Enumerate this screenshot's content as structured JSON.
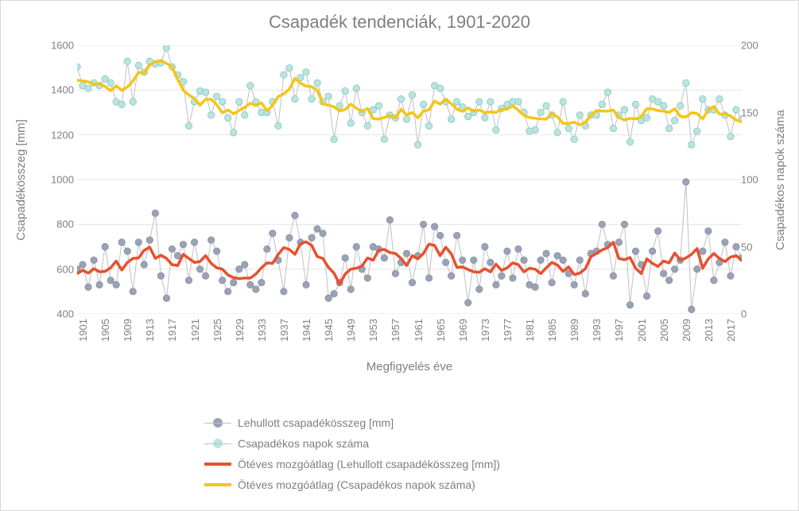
{
  "title": {
    "text": "Csapadék tendenciák, 1901-2020",
    "fontsize": 22
  },
  "axes": {
    "x_label": "Megfigyelés éve",
    "y_label_left": "Csapadékösszeg [mm]",
    "y_label_right": "Csapadékos napok száma",
    "label_fontsize": 15,
    "tick_fontsize": 13,
    "x_start": 1901,
    "x_end": 2020,
    "y1_min": 400,
    "y1_max": 1600,
    "y2_min": 0,
    "y2_max": 200,
    "y1_ticks": [
      400,
      600,
      800,
      1000,
      1200,
      1400,
      1600
    ],
    "y2_ticks": [
      0,
      50,
      100,
      150,
      200
    ],
    "x_ticks": [
      1901,
      1905,
      1909,
      1913,
      1917,
      1921,
      1925,
      1929,
      1933,
      1937,
      1941,
      1945,
      1949,
      1953,
      1957,
      1961,
      1965,
      1969,
      1973,
      1977,
      1981,
      1985,
      1989,
      1993,
      1997,
      2001,
      2005,
      2009,
      2013,
      2017
    ],
    "grid_color": "#e6e6e6",
    "background": "#ffffff",
    "text_color": "#7f7f7f"
  },
  "series": {
    "precip_mm": {
      "type": "scatter-line",
      "axis": "y1",
      "marker_color": "#9aa3b5",
      "marker_stroke": "#8891a3",
      "line_color": "#c0c0c0",
      "line_width": 1,
      "marker_radius": 4.2,
      "label": "Lehullott csapadékösszeg [mm]",
      "years": [
        1901,
        1902,
        1903,
        1904,
        1905,
        1906,
        1907,
        1908,
        1909,
        1910,
        1911,
        1912,
        1913,
        1914,
        1915,
        1916,
        1917,
        1918,
        1919,
        1920,
        1921,
        1922,
        1923,
        1924,
        1925,
        1926,
        1927,
        1928,
        1929,
        1930,
        1931,
        1932,
        1933,
        1934,
        1935,
        1936,
        1937,
        1938,
        1939,
        1940,
        1941,
        1942,
        1943,
        1944,
        1945,
        1946,
        1947,
        1948,
        1949,
        1950,
        1951,
        1952,
        1953,
        1954,
        1955,
        1956,
        1957,
        1958,
        1959,
        1960,
        1961,
        1962,
        1963,
        1964,
        1965,
        1966,
        1967,
        1968,
        1969,
        1970,
        1971,
        1972,
        1973,
        1974,
        1975,
        1976,
        1977,
        1978,
        1979,
        1980,
        1981,
        1982,
        1983,
        1984,
        1985,
        1986,
        1987,
        1988,
        1989,
        1990,
        1991,
        1992,
        1993,
        1994,
        1995,
        1996,
        1997,
        1998,
        1999,
        2000,
        2001,
        2002,
        2003,
        2004,
        2005,
        2006,
        2007,
        2008,
        2009,
        2010,
        2011,
        2012,
        2013,
        2014,
        2015,
        2016,
        2017,
        2018,
        2019,
        2020
      ],
      "values": [
        600,
        620,
        520,
        640,
        530,
        700,
        550,
        530,
        720,
        680,
        500,
        720,
        620,
        730,
        850,
        570,
        470,
        690,
        660,
        710,
        550,
        720,
        600,
        570,
        730,
        680,
        550,
        500,
        540,
        600,
        620,
        530,
        510,
        540,
        690,
        760,
        640,
        500,
        740,
        840,
        720,
        530,
        740,
        780,
        760,
        470,
        490,
        540,
        650,
        510,
        700,
        600,
        560,
        700,
        690,
        650,
        820,
        580,
        630,
        670,
        540,
        660,
        800,
        560,
        790,
        750,
        630,
        570,
        750,
        640,
        450,
        640,
        510,
        700,
        630,
        530,
        570,
        680,
        560,
        690,
        640,
        530,
        520,
        640,
        670,
        540,
        660,
        640,
        580,
        530,
        640,
        490,
        670,
        680,
        800,
        710,
        570,
        720,
        800,
        440,
        680,
        620,
        480,
        680,
        770,
        580,
        550,
        600,
        640,
        990,
        420,
        600,
        680,
        770,
        550,
        630,
        720,
        570,
        700,
        650
      ]
    },
    "rainy_days": {
      "type": "scatter-line",
      "axis": "y2",
      "marker_color": "#bde3df",
      "marker_stroke": "#7fc9c0",
      "line_color": "#c0c0c0",
      "line_width": 1,
      "marker_radius": 4.2,
      "label": "Csapadékos napok száma",
      "years": [
        1901,
        1902,
        1903,
        1904,
        1905,
        1906,
        1907,
        1908,
        1909,
        1910,
        1911,
        1912,
        1913,
        1914,
        1915,
        1916,
        1917,
        1918,
        1919,
        1920,
        1921,
        1922,
        1923,
        1924,
        1925,
        1926,
        1927,
        1928,
        1929,
        1930,
        1931,
        1932,
        1933,
        1934,
        1935,
        1936,
        1937,
        1938,
        1939,
        1940,
        1941,
        1942,
        1943,
        1944,
        1945,
        1946,
        1947,
        1948,
        1949,
        1950,
        1951,
        1952,
        1953,
        1954,
        1955,
        1956,
        1957,
        1958,
        1959,
        1960,
        1961,
        1962,
        1963,
        1964,
        1965,
        1966,
        1967,
        1968,
        1969,
        1970,
        1971,
        1972,
        1973,
        1974,
        1975,
        1976,
        1977,
        1978,
        1979,
        1980,
        1981,
        1982,
        1983,
        1984,
        1985,
        1986,
        1987,
        1988,
        1989,
        1990,
        1991,
        1992,
        1993,
        1994,
        1995,
        1996,
        1997,
        1998,
        1999,
        2000,
        2001,
        2002,
        2003,
        2004,
        2005,
        2006,
        2007,
        2008,
        2009,
        2010,
        2011,
        2012,
        2013,
        2014,
        2015,
        2016,
        2017,
        2018,
        2019,
        2020
      ],
      "values": [
        184,
        170,
        168,
        172,
        170,
        175,
        172,
        158,
        156,
        188,
        158,
        185,
        180,
        188,
        186,
        187,
        198,
        184,
        178,
        173,
        140,
        158,
        166,
        165,
        148,
        162,
        158,
        146,
        135,
        158,
        148,
        170,
        158,
        150,
        150,
        158,
        140,
        178,
        183,
        160,
        176,
        180,
        160,
        172,
        158,
        162,
        130,
        155,
        166,
        142,
        168,
        150,
        140,
        152,
        155,
        130,
        148,
        146,
        160,
        145,
        163,
        126,
        156,
        140,
        170,
        168,
        158,
        145,
        158,
        154,
        147,
        150,
        158,
        146,
        158,
        137,
        153,
        156,
        158,
        158,
        150,
        136,
        137,
        150,
        155,
        148,
        135,
        158,
        138,
        130,
        148,
        140,
        148,
        148,
        156,
        165,
        138,
        148,
        152,
        128,
        156,
        144,
        146,
        160,
        158,
        155,
        138,
        144,
        155,
        172,
        126,
        136,
        160,
        152,
        152,
        160,
        148,
        132,
        152,
        145
      ]
    },
    "ma5_mm": {
      "type": "line",
      "axis": "y1",
      "color": "#e8502e",
      "width": 3.5,
      "label": "Ötéves mozgóátlag (Lehullott csapadékösszeg [mm])"
    },
    "ma5_days": {
      "type": "line",
      "axis": "y2",
      "color": "#f5c518",
      "width": 3.5,
      "label": "Ötéves mozgóátlag (Csapadékos napok száma)"
    }
  },
  "legend": {
    "fontsize": 14,
    "items": [
      {
        "kind": "dot-line",
        "color": "#9aa3b5",
        "label_path": "series.precip_mm.label"
      },
      {
        "kind": "dot-line",
        "color": "#bde3df",
        "label_path": "series.rainy_days.label"
      },
      {
        "kind": "thick-line",
        "color": "#e8502e",
        "label_path": "series.ma5_mm.label"
      },
      {
        "kind": "thick-line",
        "color": "#f5c518",
        "label_path": "series.ma5_days.label"
      }
    ]
  }
}
